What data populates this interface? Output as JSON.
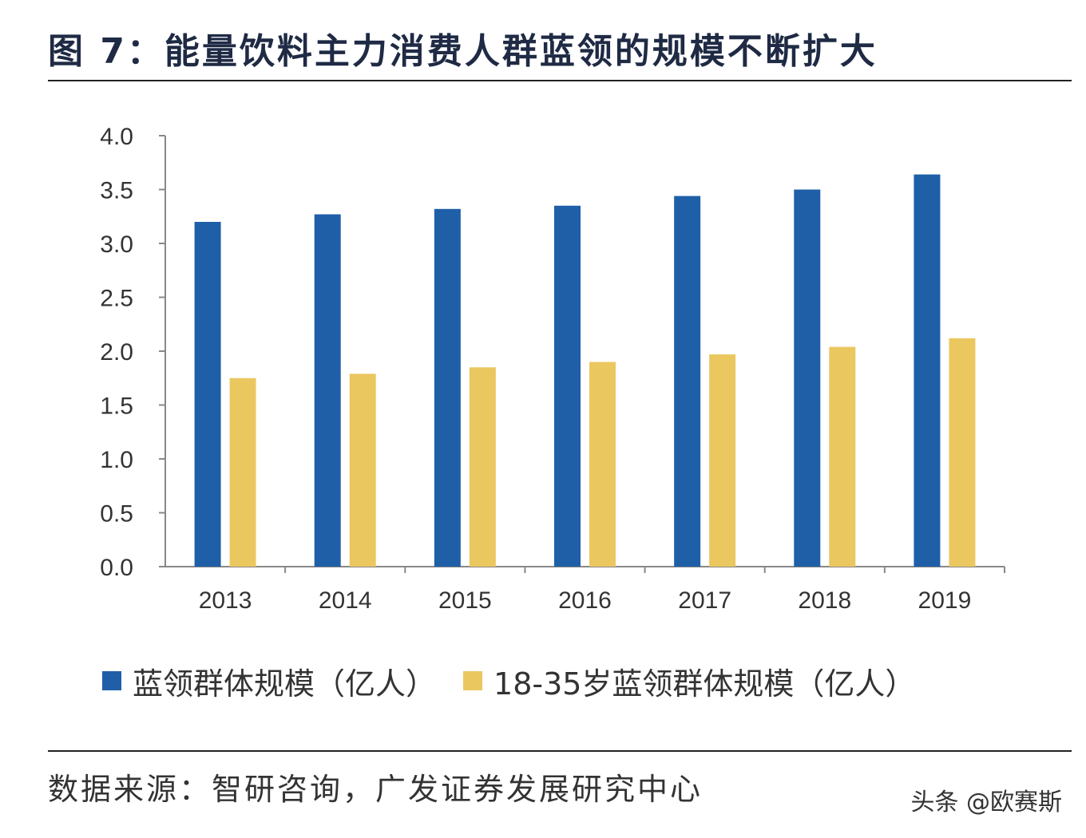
{
  "title": "图 7：能量饮料主力消费人群蓝领的规模不断扩大",
  "source": "数据来源：智研咨询，广发证券发展研究中心",
  "watermark": "头条 @欧赛斯",
  "chart_data": {
    "type": "bar",
    "categories": [
      "2013",
      "2014",
      "2015",
      "2016",
      "2017",
      "2018",
      "2019"
    ],
    "series": [
      {
        "name": "蓝领群体规模（亿人）",
        "color": "#1f5fa8",
        "values": [
          3.2,
          3.27,
          3.32,
          3.35,
          3.44,
          3.5,
          3.64
        ]
      },
      {
        "name": "18-35岁蓝领群体规模（亿人）",
        "color": "#ebc760",
        "values": [
          1.75,
          1.79,
          1.85,
          1.9,
          1.97,
          2.04,
          2.12
        ]
      }
    ],
    "ylim": [
      0,
      4.0
    ],
    "yticks": [
      "0.0",
      "0.5",
      "1.0",
      "1.5",
      "2.0",
      "2.5",
      "3.0",
      "3.5",
      "4.0"
    ],
    "title": "",
    "xlabel": "",
    "ylabel": "",
    "grid": false,
    "legend": "bottom"
  }
}
